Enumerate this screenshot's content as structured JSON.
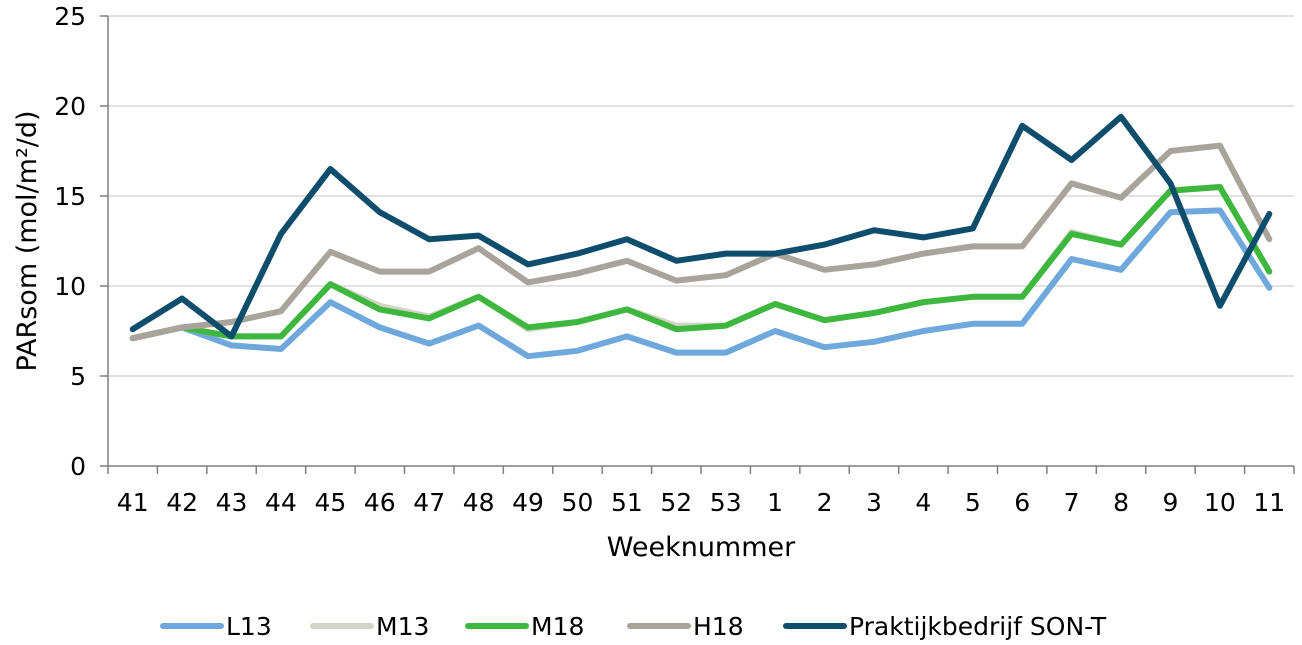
{
  "chart_data": {
    "type": "line",
    "title": "",
    "xlabel": "Weeknummer",
    "ylabel": "PARsom (mol/m²/d)",
    "ylim": [
      0,
      25
    ],
    "yticks": [
      "0",
      "5",
      "10",
      "15",
      "20",
      "25"
    ],
    "grid": true,
    "legend_position": "bottom",
    "categories": [
      "41",
      "42",
      "43",
      "44",
      "45",
      "46",
      "47",
      "48",
      "49",
      "50",
      "51",
      "52",
      "53",
      "1",
      "2",
      "3",
      "4",
      "5",
      "6",
      "7",
      "8",
      "9",
      "10",
      "11"
    ],
    "series": [
      {
        "name": "L13",
        "color": "#6fa8dc",
        "values": [
          7.1,
          7.7,
          6.7,
          6.5,
          9.1,
          7.7,
          6.8,
          7.8,
          6.1,
          6.4,
          7.2,
          6.3,
          6.3,
          7.5,
          6.6,
          6.9,
          7.5,
          7.9,
          7.9,
          11.5,
          10.9,
          14.1,
          14.2,
          9.9
        ]
      },
      {
        "name": "M13",
        "color": "#d4d3c7",
        "values": [
          7.1,
          7.7,
          7.2,
          7.2,
          10.1,
          8.9,
          8.3,
          9.4,
          7.6,
          8.0,
          8.7,
          7.8,
          7.8,
          9.0,
          8.1,
          8.5,
          9.1,
          9.4,
          9.4,
          13.0,
          12.3,
          15.3,
          15.5,
          10.8
        ]
      },
      {
        "name": "M18",
        "color": "#3db73d",
        "values": [
          7.1,
          7.7,
          7.2,
          7.2,
          10.1,
          8.7,
          8.2,
          9.4,
          7.7,
          8.0,
          8.7,
          7.6,
          7.8,
          9.0,
          8.1,
          8.5,
          9.1,
          9.4,
          9.4,
          12.9,
          12.3,
          15.3,
          15.5,
          10.8
        ]
      },
      {
        "name": "H18",
        "color": "#a8a39b",
        "values": [
          7.1,
          7.7,
          8.0,
          8.6,
          11.9,
          10.8,
          10.8,
          12.1,
          10.2,
          10.7,
          11.4,
          10.3,
          10.6,
          11.8,
          10.9,
          11.2,
          11.8,
          12.2,
          12.2,
          15.7,
          14.9,
          17.5,
          17.8,
          12.6
        ]
      },
      {
        "name": "Praktijkbedrijf SON-T",
        "color": "#0e4d6b",
        "values": [
          7.6,
          9.3,
          7.2,
          12.9,
          16.5,
          14.1,
          12.6,
          12.8,
          11.2,
          11.8,
          12.6,
          11.4,
          11.8,
          11.8,
          12.3,
          13.1,
          12.7,
          13.2,
          18.9,
          17.0,
          19.4,
          15.7,
          8.9,
          14.0
        ]
      }
    ]
  }
}
